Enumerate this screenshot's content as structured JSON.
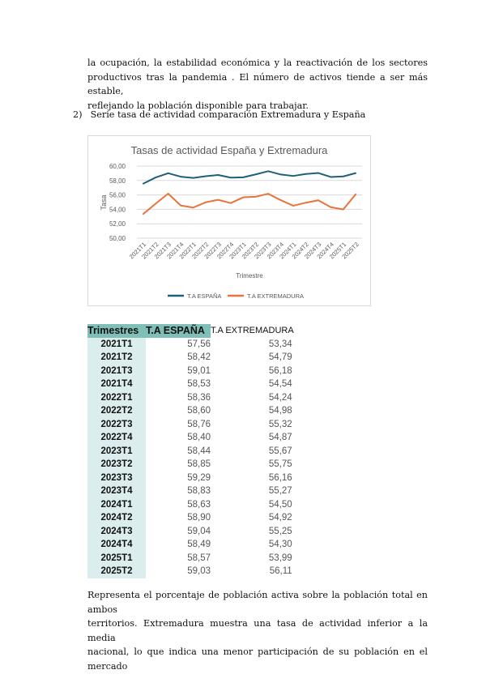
{
  "intro_lines": [
    "la ocupación, la estabilidad económica y la reactivación de los sectores",
    "productivos tras la pandemia . El número de activos tiende a ser más estable,",
    "reflejando la población disponible para trabajar."
  ],
  "item": {
    "number": "2)",
    "title": "Serie tasa de actividad comparación Extremadura y España"
  },
  "chart_data": {
    "type": "line",
    "title": "Tasas de actividad España y Extremadura",
    "xlabel": "Trimestre",
    "ylabel": "Tasa",
    "ylim": [
      50,
      60
    ],
    "yticks": [
      "50,00",
      "52,00",
      "54,00",
      "56,00",
      "58,00",
      "60,00"
    ],
    "categories": [
      "2021T1",
      "2021T2",
      "2021T3",
      "2021T4",
      "2022T1",
      "2022T2",
      "2022T3",
      "2022T4",
      "2023T1",
      "2023T2",
      "2023T3",
      "2023T4",
      "2024T1",
      "2024T2",
      "2024T3",
      "2024T4",
      "2025T1",
      "2025T2"
    ],
    "series": [
      {
        "name": "T.A ESPAÑA",
        "color": "#1f5f7a",
        "values": [
          57.56,
          58.42,
          59.01,
          58.53,
          58.36,
          58.6,
          58.76,
          58.4,
          58.44,
          58.85,
          59.29,
          58.83,
          58.63,
          58.9,
          59.04,
          58.49,
          58.57,
          59.03
        ]
      },
      {
        "name": "T.A EXTREMADURA",
        "color": "#e8743b",
        "values": [
          53.34,
          54.79,
          56.18,
          54.54,
          54.24,
          54.98,
          55.32,
          54.87,
          55.67,
          55.75,
          56.16,
          55.27,
          54.5,
          54.92,
          55.25,
          54.3,
          53.99,
          56.11
        ]
      }
    ],
    "grid": true,
    "legend": "bottom"
  },
  "table": {
    "headers": [
      "Trimestres",
      "T.A ESPAÑA",
      "T.A EXTREMADURA"
    ],
    "rows": [
      [
        "2021T1",
        "57,56",
        "53,34"
      ],
      [
        "2021T2",
        "58,42",
        "54,79"
      ],
      [
        "2021T3",
        "59,01",
        "56,18"
      ],
      [
        "2021T4",
        "58,53",
        "54,54"
      ],
      [
        "2022T1",
        "58,36",
        "54,24"
      ],
      [
        "2022T2",
        "58,60",
        "54,98"
      ],
      [
        "2022T3",
        "58,76",
        "55,32"
      ],
      [
        "2022T4",
        "58,40",
        "54,87"
      ],
      [
        "2023T1",
        "58,44",
        "55,67"
      ],
      [
        "2023T2",
        "58,85",
        "55,75"
      ],
      [
        "2023T3",
        "59,29",
        "56,16"
      ],
      [
        "2023T4",
        "58,83",
        "55,27"
      ],
      [
        "2024T1",
        "58,63",
        "54,50"
      ],
      [
        "2024T2",
        "58,90",
        "54,92"
      ],
      [
        "2024T3",
        "59,04",
        "55,25"
      ],
      [
        "2024T4",
        "58,49",
        "54,30"
      ],
      [
        "2025T1",
        "58,57",
        "53,99"
      ],
      [
        "2025T2",
        "59,03",
        "56,11"
      ]
    ]
  },
  "outro_lines": [
    "Representa el porcentaje de población activa sobre la población total en ambos",
    "territorios. Extremadura muestra una tasa de actividad inferior a la media",
    "nacional, lo que indica una menor participación de su población en el mercado"
  ]
}
